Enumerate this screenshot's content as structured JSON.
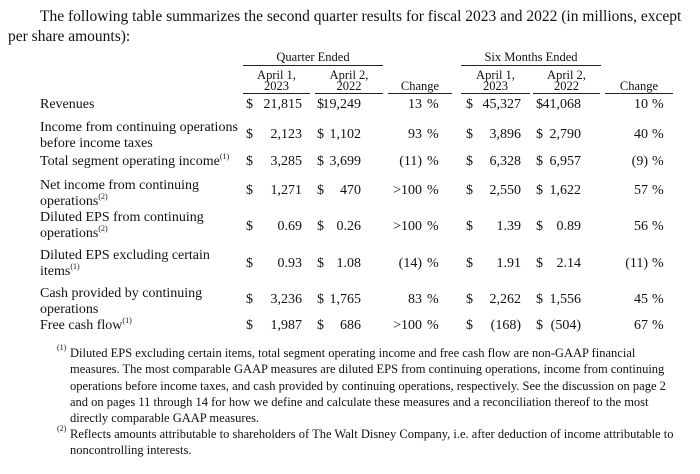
{
  "intro": "The following table summarizes the second quarter results for fiscal 2023 and 2022 (in millions, except per share amounts):",
  "headers": {
    "quarter_ended": "Quarter Ended",
    "six_months_ended": "Six Months Ended",
    "col_2023_line1": "April 1,",
    "col_2023_line2": "2023",
    "col_2022_line1": "April 2,",
    "col_2022_line2": "2022",
    "change": "Change"
  },
  "currency": "$",
  "rows": [
    {
      "label1": "Revenues",
      "label2": "",
      "sup1": "",
      "sup2": "",
      "q23": "21,815",
      "q22": "19,249",
      "qchg": "13",
      "s23": "45,327",
      "s22": "41,068",
      "schg": "10"
    },
    {
      "label1": "Income from continuing operations",
      "label2": "before income taxes",
      "sup1": "",
      "sup2": "",
      "q23": "2,123",
      "q22": "1,102",
      "qchg": "93",
      "s23": "3,896",
      "s22": "2,790",
      "schg": "40"
    },
    {
      "label1": "Total segment operating income",
      "label2": "",
      "sup1": "(1)",
      "sup2": "",
      "q23": "3,285",
      "q22": "3,699",
      "qchg": "(11)",
      "s23": "6,328",
      "s22": "6,957",
      "schg": "(9)"
    },
    {
      "label1": "Net income from continuing",
      "label2": "operations",
      "sup1": "",
      "sup2": "(2)",
      "q23": "1,271",
      "q22": "470",
      "qchg": ">100",
      "s23": "2,550",
      "s22": "1,622",
      "schg": "57"
    },
    {
      "label1": "Diluted EPS from continuing",
      "label2": "operations",
      "sup1": "",
      "sup2": "(2)",
      "q23": "0.69",
      "q22": "0.26",
      "qchg": ">100",
      "s23": "1.39",
      "s22": "0.89",
      "schg": "56"
    },
    {
      "label1": "Diluted EPS excluding certain",
      "label2": "items",
      "sup1": "",
      "sup2": "(1)",
      "q23": "0.93",
      "q22": "1.08",
      "qchg": "(14)",
      "s23": "1.91",
      "s22": "2.14",
      "schg": "(11)"
    },
    {
      "label1": "Cash provided by continuing",
      "label2": "operations",
      "sup1": "",
      "sup2": "",
      "q23": "3,236",
      "q22": "1,765",
      "qchg": "83",
      "s23": "2,262",
      "s22": "1,556",
      "schg": "45"
    },
    {
      "label1": "Free cash flow",
      "label2": "",
      "sup1": "(1)",
      "sup2": "",
      "q23": "1,987",
      "q22": "686",
      "qchg": ">100",
      "s23": "(168)",
      "s22": "(504)",
      "schg": "67"
    }
  ],
  "percent": "%",
  "footnotes": [
    {
      "mark": "(1)",
      "text": "Diluted EPS excluding certain items, total segment operating income and free cash flow are non-GAAP financial measures. The most comparable GAAP measures are diluted EPS from continuing operations, income from continuing operations before income taxes, and cash provided by continuing operations, respectively. See the discussion on page 2 and on pages 11 through 14 for how we define and calculate these measures and a reconciliation thereof to the most directly comparable GAAP measures."
    },
    {
      "mark": "(2)",
      "text": "Reflects amounts attributable to shareholders of The Walt Disney Company, i.e. after deduction of income attributable to noncontrolling interests."
    }
  ]
}
